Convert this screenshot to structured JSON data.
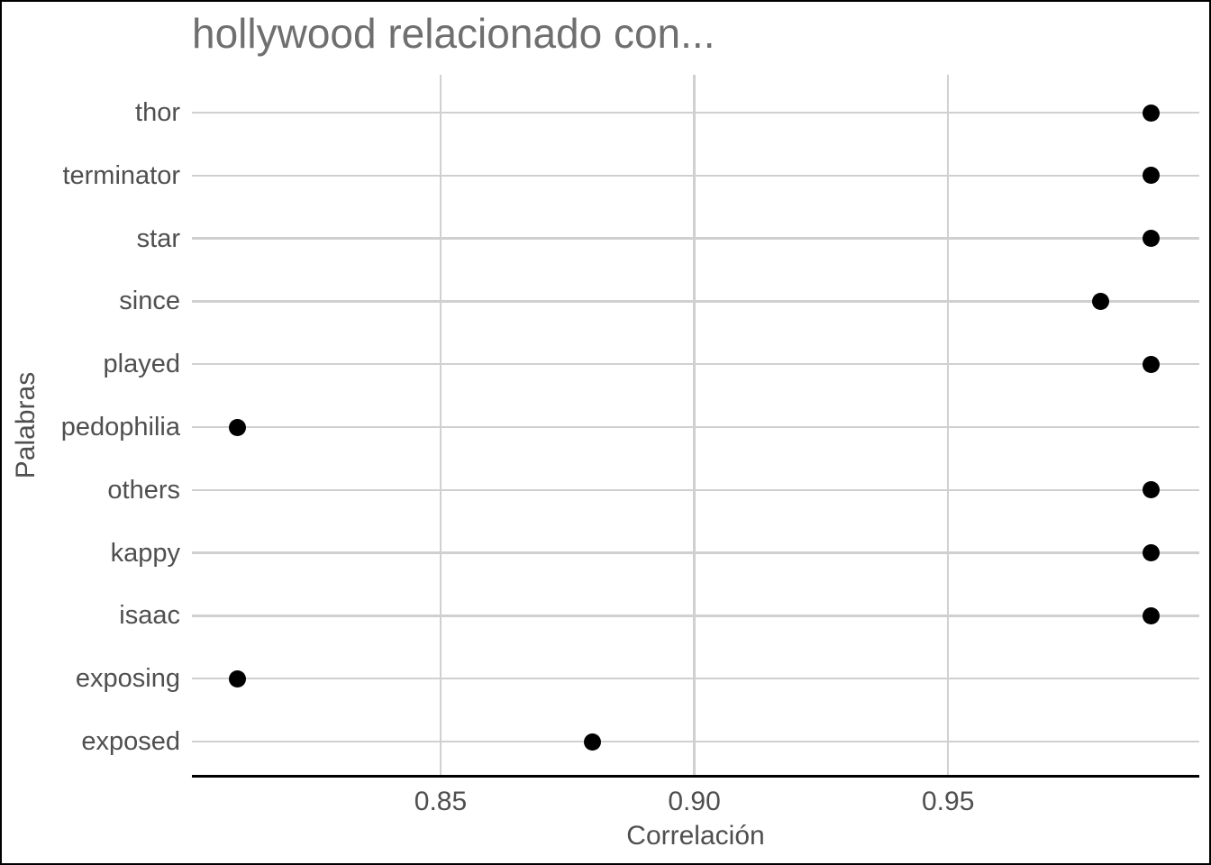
{
  "figure": {
    "background_color": "#ffffff",
    "frame_color": "#000000"
  },
  "chart_data": {
    "type": "scatter",
    "title": "hollywood relacionado con...",
    "xlabel": "Correlación",
    "ylabel": "Palabras",
    "categories": [
      "thor",
      "terminator",
      "star",
      "since",
      "played",
      "pedophilia",
      "others",
      "kappy",
      "isaac",
      "exposing",
      "exposed"
    ],
    "values": [
      0.99,
      0.99,
      0.99,
      0.98,
      0.99,
      0.81,
      0.99,
      0.99,
      0.99,
      0.81,
      0.88
    ],
    "xlim": [
      0.801,
      0.9995
    ],
    "xticks": [
      0.85,
      0.9,
      0.95
    ],
    "xtick_labels": [
      "0.85",
      "0.90",
      "0.95"
    ],
    "grid": "major-only",
    "legend": "none",
    "point_color": "#000000",
    "grid_color": "#d0d0d0",
    "axis_line_color": "#000000",
    "title_color": "#6f6f6f",
    "axis_text_color": "#4f4f4f"
  }
}
